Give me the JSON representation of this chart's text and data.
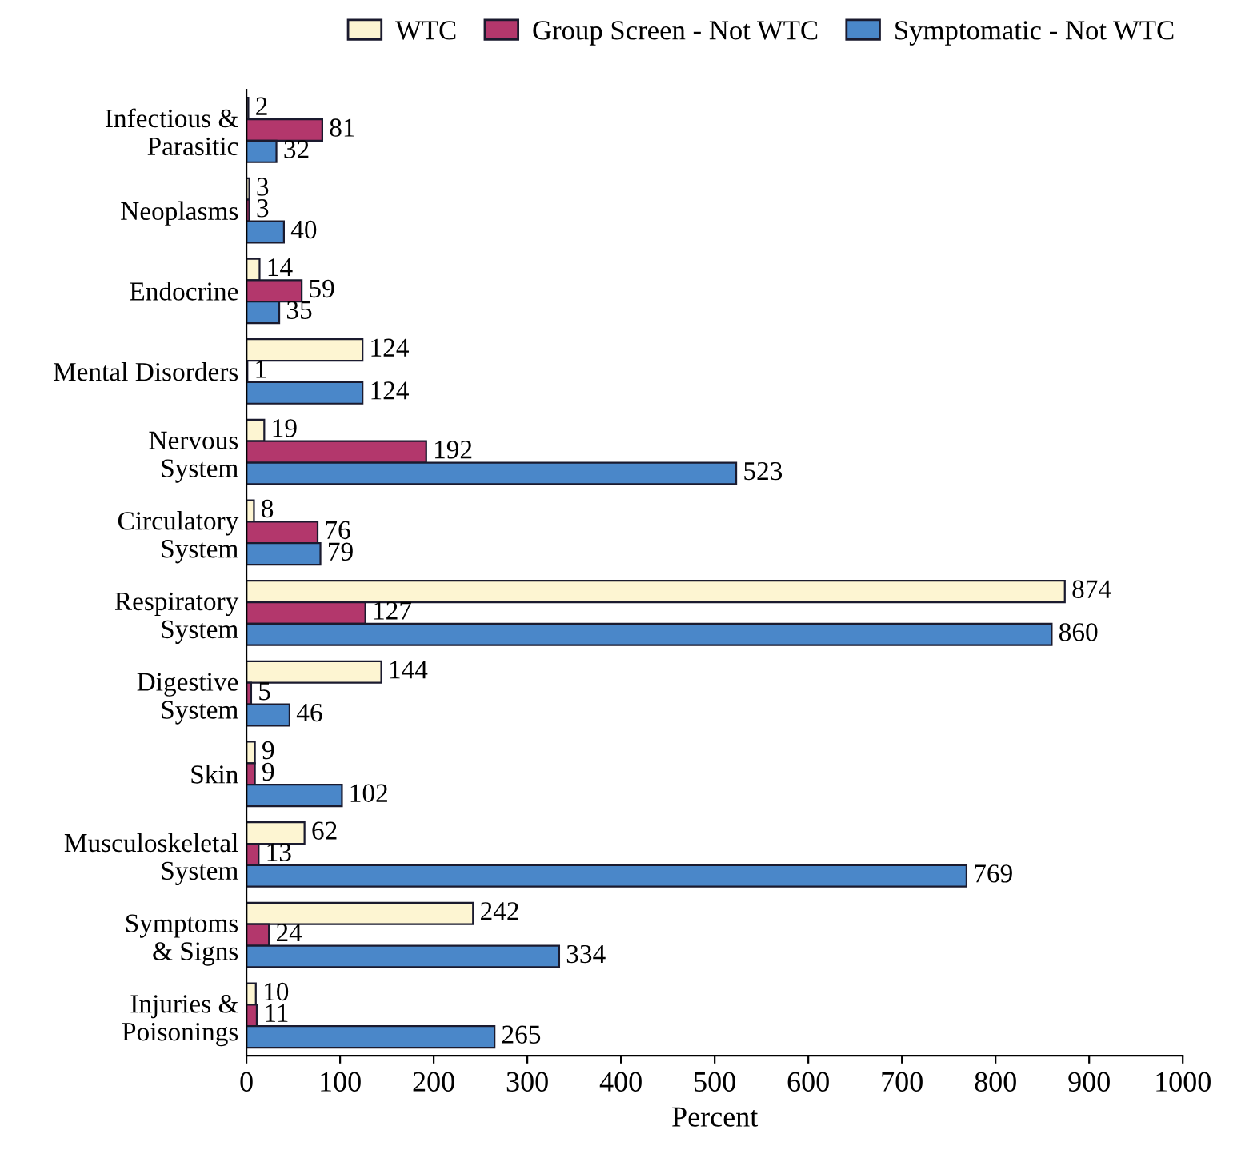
{
  "chart_data": {
    "type": "bar",
    "orientation": "horizontal",
    "xlabel": "Percent",
    "categories": [
      "Infectious &\nParasitic",
      "Neoplasms",
      "Endocrine",
      "Mental Disorders",
      "Nervous\nSystem",
      "Circulatory\nSystem",
      "Respiratory\nSystem",
      "Digestive\nSystem",
      "Skin",
      "Musculoskeletal\nSystem",
      "Symptoms\n& Signs",
      "Injuries &\nPoisonings"
    ],
    "series": [
      {
        "name": "WTC",
        "color": "#fdf5d2",
        "values": [
          2,
          3,
          14,
          124,
          19,
          8,
          874,
          144,
          9,
          62,
          242,
          10
        ]
      },
      {
        "name": "Group Screen - Not WTC",
        "color": "#b3376c",
        "values": [
          81,
          3,
          59,
          1,
          192,
          76,
          127,
          5,
          9,
          13,
          24,
          11
        ]
      },
      {
        "name": "Symptomatic - Not WTC",
        "color": "#4a87c9",
        "values": [
          32,
          40,
          35,
          124,
          523,
          79,
          860,
          46,
          102,
          769,
          334,
          265
        ]
      }
    ],
    "xlim": [
      0,
      1000
    ],
    "xticks": [
      0,
      100,
      200,
      300,
      400,
      500,
      600,
      700,
      800,
      900,
      1000
    ],
    "data_labels": true,
    "grid": false,
    "legend": "top"
  }
}
